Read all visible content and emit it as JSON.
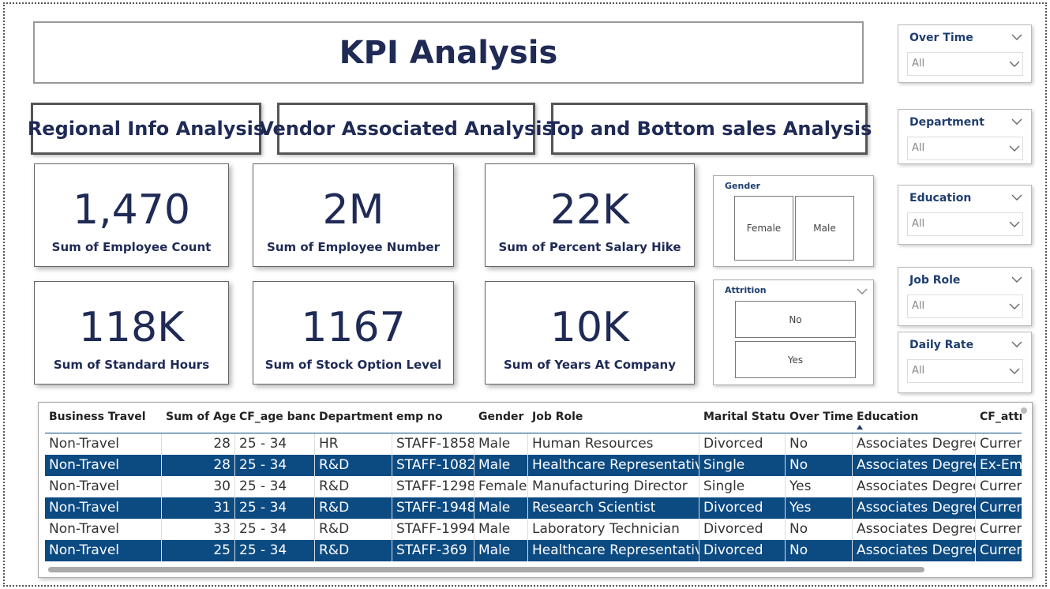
{
  "header": {
    "title": "KPI Analysis"
  },
  "nav_buttons": [
    "Regional Info Analysis",
    "Vendor Associated Analysis",
    "Top and Bottom sales Analysis"
  ],
  "kpi_cards": [
    {
      "value": "1,470",
      "label": "Sum of Employee Count"
    },
    {
      "value": "2M",
      "label": "Sum of Employee Number"
    },
    {
      "value": "22K",
      "label": "Sum of Percent Salary Hike"
    },
    {
      "value": "118K",
      "label": "Sum of Standard Hours"
    },
    {
      "value": "1167",
      "label": "Sum of Stock Option Level"
    },
    {
      "value": "10K",
      "label": "Sum of Years At Company"
    }
  ],
  "slicers": [
    {
      "title": "Gender",
      "options": [
        "Female",
        "Male"
      ]
    },
    {
      "title": "Attrition",
      "options": [
        "No",
        "Yes"
      ]
    }
  ],
  "filters": [
    {
      "title": "Over Time",
      "value": "All"
    },
    {
      "title": "Department",
      "value": "All"
    },
    {
      "title": "Education",
      "value": "All"
    },
    {
      "title": "Job Role",
      "value": "All"
    },
    {
      "title": "Daily Rate",
      "value": "All"
    }
  ],
  "table": {
    "columns": [
      "Business Travel",
      "Sum of Age",
      "CF_age band",
      "Department",
      "emp no",
      "Gender",
      "Job Role",
      "Marital Status",
      "Over Time",
      "Education",
      "CF_attri"
    ],
    "rows": [
      [
        "Non-Travel",
        28,
        "25 - 34",
        "HR",
        "STAFF-1858",
        "Male",
        "Human Resources",
        "Divorced",
        "No",
        "Associates Degree",
        "Curren"
      ],
      [
        "Non-Travel",
        28,
        "25 - 34",
        "R&D",
        "STAFF-1082",
        "Male",
        "Healthcare Representative",
        "Single",
        "No",
        "Associates Degree",
        "Ex-Emp"
      ],
      [
        "Non-Travel",
        30,
        "25 - 34",
        "R&D",
        "STAFF-1298",
        "Female",
        "Manufacturing Director",
        "Single",
        "Yes",
        "Associates Degree",
        "Curren"
      ],
      [
        "Non-Travel",
        31,
        "25 - 34",
        "R&D",
        "STAFF-1948",
        "Male",
        "Research Scientist",
        "Divorced",
        "Yes",
        "Associates Degree",
        "Curren"
      ],
      [
        "Non-Travel",
        33,
        "25 - 34",
        "R&D",
        "STAFF-1994",
        "Male",
        "Laboratory Technician",
        "Divorced",
        "No",
        "Associates Degree",
        "Curren"
      ],
      [
        "Non-Travel",
        25,
        "25 - 34",
        "R&D",
        "STAFF-369",
        "Male",
        "Healthcare Representative",
        "Divorced",
        "No",
        "Associates Degree",
        "Curren"
      ]
    ]
  }
}
